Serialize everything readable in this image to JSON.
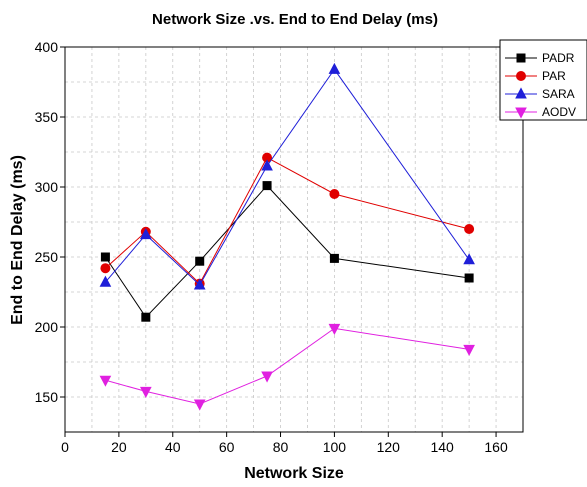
{
  "chart_data": {
    "type": "line",
    "title": "Network Size .vs. End to End Delay (ms)",
    "xlabel": "Network Size",
    "ylabel": "End to End Delay (ms)",
    "xlim": [
      0,
      170
    ],
    "ylim": [
      125,
      400
    ],
    "xticks": [
      0,
      20,
      40,
      60,
      80,
      100,
      120,
      140,
      160
    ],
    "yticks": [
      150,
      200,
      250,
      300,
      350,
      400
    ],
    "grid": true,
    "legend_position": "top-right",
    "x": [
      15,
      30,
      50,
      75,
      100,
      150
    ],
    "series": [
      {
        "name": "PADR",
        "marker": "square",
        "color": "#000000",
        "values": [
          250,
          207,
          247,
          301,
          249,
          235
        ]
      },
      {
        "name": "PAR",
        "marker": "circle",
        "color": "#e00000",
        "values": [
          242,
          268,
          231,
          321,
          295,
          270
        ]
      },
      {
        "name": "SARA",
        "marker": "triangle-up",
        "color": "#1f1fd8",
        "values": [
          232,
          266,
          230,
          315,
          384,
          248
        ]
      },
      {
        "name": "AODV",
        "marker": "triangle-down",
        "color": "#e020e0",
        "values": [
          162,
          154,
          145,
          165,
          199,
          184
        ]
      }
    ]
  }
}
